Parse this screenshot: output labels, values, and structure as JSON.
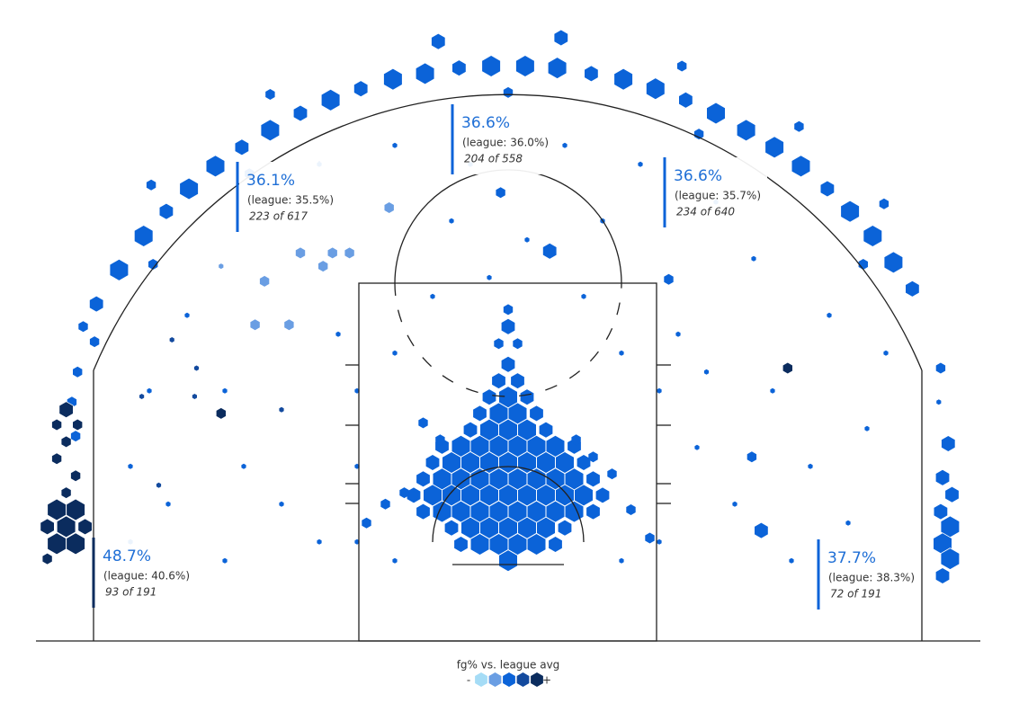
{
  "chart_data": {
    "type": "hexbin",
    "xlim": [
      -25,
      25
    ],
    "ylim": [
      -5.25,
      28.7
    ],
    "series": [
      {
        "color": "#6a9ee3",
        "x": [
          -6.3,
          -9.3,
          -8.4,
          -11.0,
          -9.8,
          -15.2,
          -12.9,
          -13.4,
          -11.6
        ],
        "y": [
          17.7,
          15.3,
          15.3,
          15.3,
          14.6,
          14.6,
          13.8,
          11.5,
          11.5
        ],
        "values": [
          2,
          2,
          2,
          2,
          2,
          1,
          2,
          2,
          2
        ]
      },
      {
        "color": "#0b63d8",
        "x": [
          0,
          -2.5,
          -1.5,
          -0.5,
          0.5,
          1.5,
          2.5,
          -3,
          -2,
          -1,
          0,
          1,
          2,
          3,
          -4.5,
          -3.5,
          -2.5,
          -1.5,
          -0.5,
          0.5,
          1.5,
          2.5,
          3.5,
          4.5,
          -5,
          -4,
          -3,
          -2,
          -1,
          0,
          1,
          2,
          3,
          4,
          5,
          -4.5,
          -3.5,
          -2.5,
          -1.5,
          -0.5,
          0.5,
          1.5,
          2.5,
          3.5,
          4.5,
          -4,
          -3,
          -2,
          -1,
          0,
          1,
          2,
          3,
          4,
          -3.5,
          -2.5,
          -1.5,
          -0.5,
          0.5,
          1.5,
          2.5,
          3.5,
          -2,
          -1,
          0,
          1,
          2,
          -1.5,
          -0.5,
          0.5,
          1.5,
          -1,
          0,
          1,
          -0.5,
          0.5,
          0,
          -21.8,
          -22.5,
          -20.6,
          -19.3,
          -18.1,
          -16.9,
          -15.5,
          -14.1,
          -12.6,
          -11.0,
          -9.4,
          -7.8,
          -6.1,
          -4.4,
          -2.6,
          -0.9,
          0.9,
          2.6,
          4.4,
          6.1,
          7.8,
          9.4,
          11.0,
          12.6,
          14.1,
          15.5,
          16.9,
          18.1,
          19.3,
          20.4,
          21.4,
          -18.9,
          -12.6,
          -3.7,
          2.8,
          9.2,
          15.4,
          19.9,
          -18.8,
          -13.7,
          0,
          10.1,
          18.8,
          -21.9,
          -22.8,
          -23.1,
          -22.9,
          22.9,
          22.8,
          23.3,
          23.0,
          23.5,
          22.9,
          23.4,
          23.0,
          23.4,
          23.0,
          2.2,
          -0.4,
          8.5,
          0,
          0,
          -0.5,
          0.5,
          3.6,
          4.5,
          -3.6,
          -4.5,
          5.5,
          -5.5,
          6.5,
          -6.5,
          13.4,
          12.9,
          -7.5,
          7.5,
          10.5,
          -10,
          -6,
          -2,
          3,
          7,
          11,
          -17,
          -19,
          -20,
          -20,
          -18,
          -14,
          -12,
          -10,
          -8,
          -8,
          -6,
          -4,
          4,
          6,
          8,
          10,
          12,
          14,
          16,
          18,
          19,
          20,
          17,
          13,
          9,
          -9,
          -15,
          15,
          -15,
          -8,
          8,
          -6,
          6,
          -1,
          1,
          -3,
          5
        ],
        "y": [
          -1.0,
          -0.13,
          -0.13,
          -0.13,
          -0.13,
          -0.13,
          -0.13,
          0.74,
          0.74,
          0.74,
          0.74,
          0.74,
          0.74,
          0.74,
          1.6,
          1.6,
          1.6,
          1.6,
          1.6,
          1.6,
          1.6,
          1.6,
          1.6,
          1.6,
          2.47,
          2.47,
          2.47,
          2.47,
          2.47,
          2.47,
          2.47,
          2.47,
          2.47,
          2.47,
          2.47,
          3.33,
          3.33,
          3.33,
          3.33,
          3.33,
          3.33,
          3.33,
          3.33,
          3.33,
          3.33,
          4.2,
          4.2,
          4.2,
          4.2,
          4.2,
          4.2,
          4.2,
          4.2,
          4.2,
          5.07,
          5.07,
          5.07,
          5.07,
          5.07,
          5.07,
          5.07,
          5.07,
          5.93,
          5.93,
          5.93,
          5.93,
          5.93,
          6.8,
          6.8,
          6.8,
          6.8,
          7.67,
          7.67,
          7.67,
          8.53,
          8.53,
          9.4,
          12.6,
          11.4,
          14.4,
          16.2,
          17.5,
          18.7,
          19.9,
          20.9,
          21.8,
          22.7,
          23.4,
          24.0,
          24.5,
          24.8,
          25.1,
          25.2,
          25.2,
          25.1,
          24.8,
          24.5,
          24.0,
          23.4,
          22.7,
          21.8,
          20.9,
          19.9,
          18.7,
          17.5,
          16.2,
          14.8,
          13.4,
          18.9,
          23.7,
          26.5,
          26.7,
          25.2,
          22.0,
          17.9,
          14.7,
          19.5,
          23.8,
          21.6,
          14.7,
          10.6,
          9.0,
          7.4,
          5.6,
          9.2,
          7.4,
          5.2,
          3.4,
          2.5,
          1.6,
          0.8,
          -0.1,
          -0.9,
          -1.8,
          15.4,
          18.5,
          13.9,
          12.3,
          11.4,
          10.5,
          10.5,
          5.4,
          4.5,
          5.4,
          6.3,
          3.6,
          2.6,
          1.7,
          2.0,
          0.6,
          4.5,
          1.0,
          0.2,
          9.0,
          20,
          21,
          20,
          21,
          20,
          18,
          12,
          8,
          4,
          0,
          2,
          4,
          2,
          0,
          4,
          8,
          10,
          13,
          13,
          10,
          8,
          5,
          2,
          8,
          4,
          1,
          6,
          10,
          12,
          15,
          11,
          11,
          8,
          -1,
          -1,
          0,
          0,
          -1,
          -1,
          14,
          16,
          17,
          17
        ],
        "values": [
          4,
          3,
          4,
          4,
          4,
          4,
          3,
          3,
          4,
          4,
          4,
          4,
          4,
          3,
          3,
          4,
          4,
          4,
          4,
          4,
          4,
          4,
          4,
          3,
          3,
          4,
          4,
          4,
          4,
          4,
          4,
          4,
          4,
          4,
          3,
          3,
          4,
          4,
          4,
          4,
          4,
          4,
          4,
          4,
          3,
          3,
          4,
          4,
          4,
          4,
          4,
          4,
          4,
          3,
          3,
          4,
          4,
          4,
          4,
          4,
          4,
          3,
          3,
          4,
          4,
          4,
          3,
          3,
          4,
          4,
          3,
          3,
          4,
          3,
          3,
          3,
          3,
          3,
          2,
          4,
          4,
          3,
          4,
          4,
          3,
          4,
          3,
          4,
          3,
          4,
          4,
          3,
          4,
          4,
          4,
          3,
          4,
          4,
          3,
          4,
          4,
          4,
          4,
          3,
          4,
          4,
          4,
          3,
          2,
          2,
          3,
          3,
          2,
          2,
          2,
          2,
          2,
          2,
          2,
          2,
          2,
          2,
          2,
          2,
          2,
          1,
          3,
          3,
          3,
          3,
          4,
          4,
          4,
          3,
          3,
          2,
          2,
          2,
          3,
          2,
          2,
          2,
          2,
          2,
          2,
          2,
          2,
          2,
          2,
          3,
          2,
          2,
          2,
          1,
          1,
          1,
          1,
          1,
          1,
          1,
          1,
          1,
          1,
          1,
          1,
          1,
          1,
          1,
          1,
          1,
          1,
          1,
          1,
          1,
          1,
          1,
          1,
          1,
          1,
          1,
          1,
          1,
          1,
          1,
          1,
          1,
          1,
          1,
          1,
          1,
          1,
          1,
          1,
          1,
          1,
          1,
          1
        ]
      },
      {
        "color": "#134a9e",
        "x": [
          -17.8,
          -16.5,
          -19.4,
          -16.6,
          -12.0,
          -18.5
        ],
        "y": [
          10.7,
          9.2,
          7.7,
          7.7,
          7.0,
          3.0
        ],
        "values": [
          1,
          1,
          1,
          1,
          1,
          1
        ]
      },
      {
        "color": "#0b2c5e",
        "x": [
          -23.4,
          -23.9,
          -22.8,
          -23.4,
          -23.9,
          -22.9,
          -23.4,
          -23.9,
          -22.9,
          -23.4,
          -24.4,
          -22.4,
          -23.9,
          -22.9,
          -24.4,
          -15.2,
          14.8
        ],
        "y": [
          7.0,
          6.2,
          6.2,
          5.3,
          4.4,
          3.5,
          2.6,
          1.7,
          1.7,
          0.8,
          0.8,
          0.8,
          -0.1,
          -0.1,
          -0.9,
          6.8,
          9.2
        ],
        "values": [
          3,
          2,
          2,
          2,
          2,
          2,
          2,
          4,
          4,
          4,
          3,
          3,
          4,
          4,
          2,
          2,
          2
        ]
      }
    ],
    "annotations": [
      {
        "text": "48.7%",
        "league": "(league: 40.6%)",
        "count": "93 of 191",
        "color": "#0b2c5e"
      },
      {
        "text": "36.1%",
        "league": "(league: 35.5%)",
        "count": "223 of 617",
        "color": "#0b63d8"
      },
      {
        "text": "36.6%",
        "league": "(league: 36.0%)",
        "count": "204 of 558",
        "color": "#0b63d8"
      },
      {
        "text": "36.6%",
        "league": "(league: 35.7%)",
        "count": "234 of 640",
        "color": "#0b63d8"
      },
      {
        "text": "37.7%",
        "league": "(league: 38.3%)",
        "count": "72 of 191",
        "color": "#0b63d8"
      }
    ],
    "legend": {
      "title": "fg% vs. league avg",
      "low": "-",
      "high": "+",
      "colors": [
        "#a5dcf6",
        "#6a9ee3",
        "#0b63d8",
        "#134a9e",
        "#0b2c5e"
      ]
    }
  }
}
